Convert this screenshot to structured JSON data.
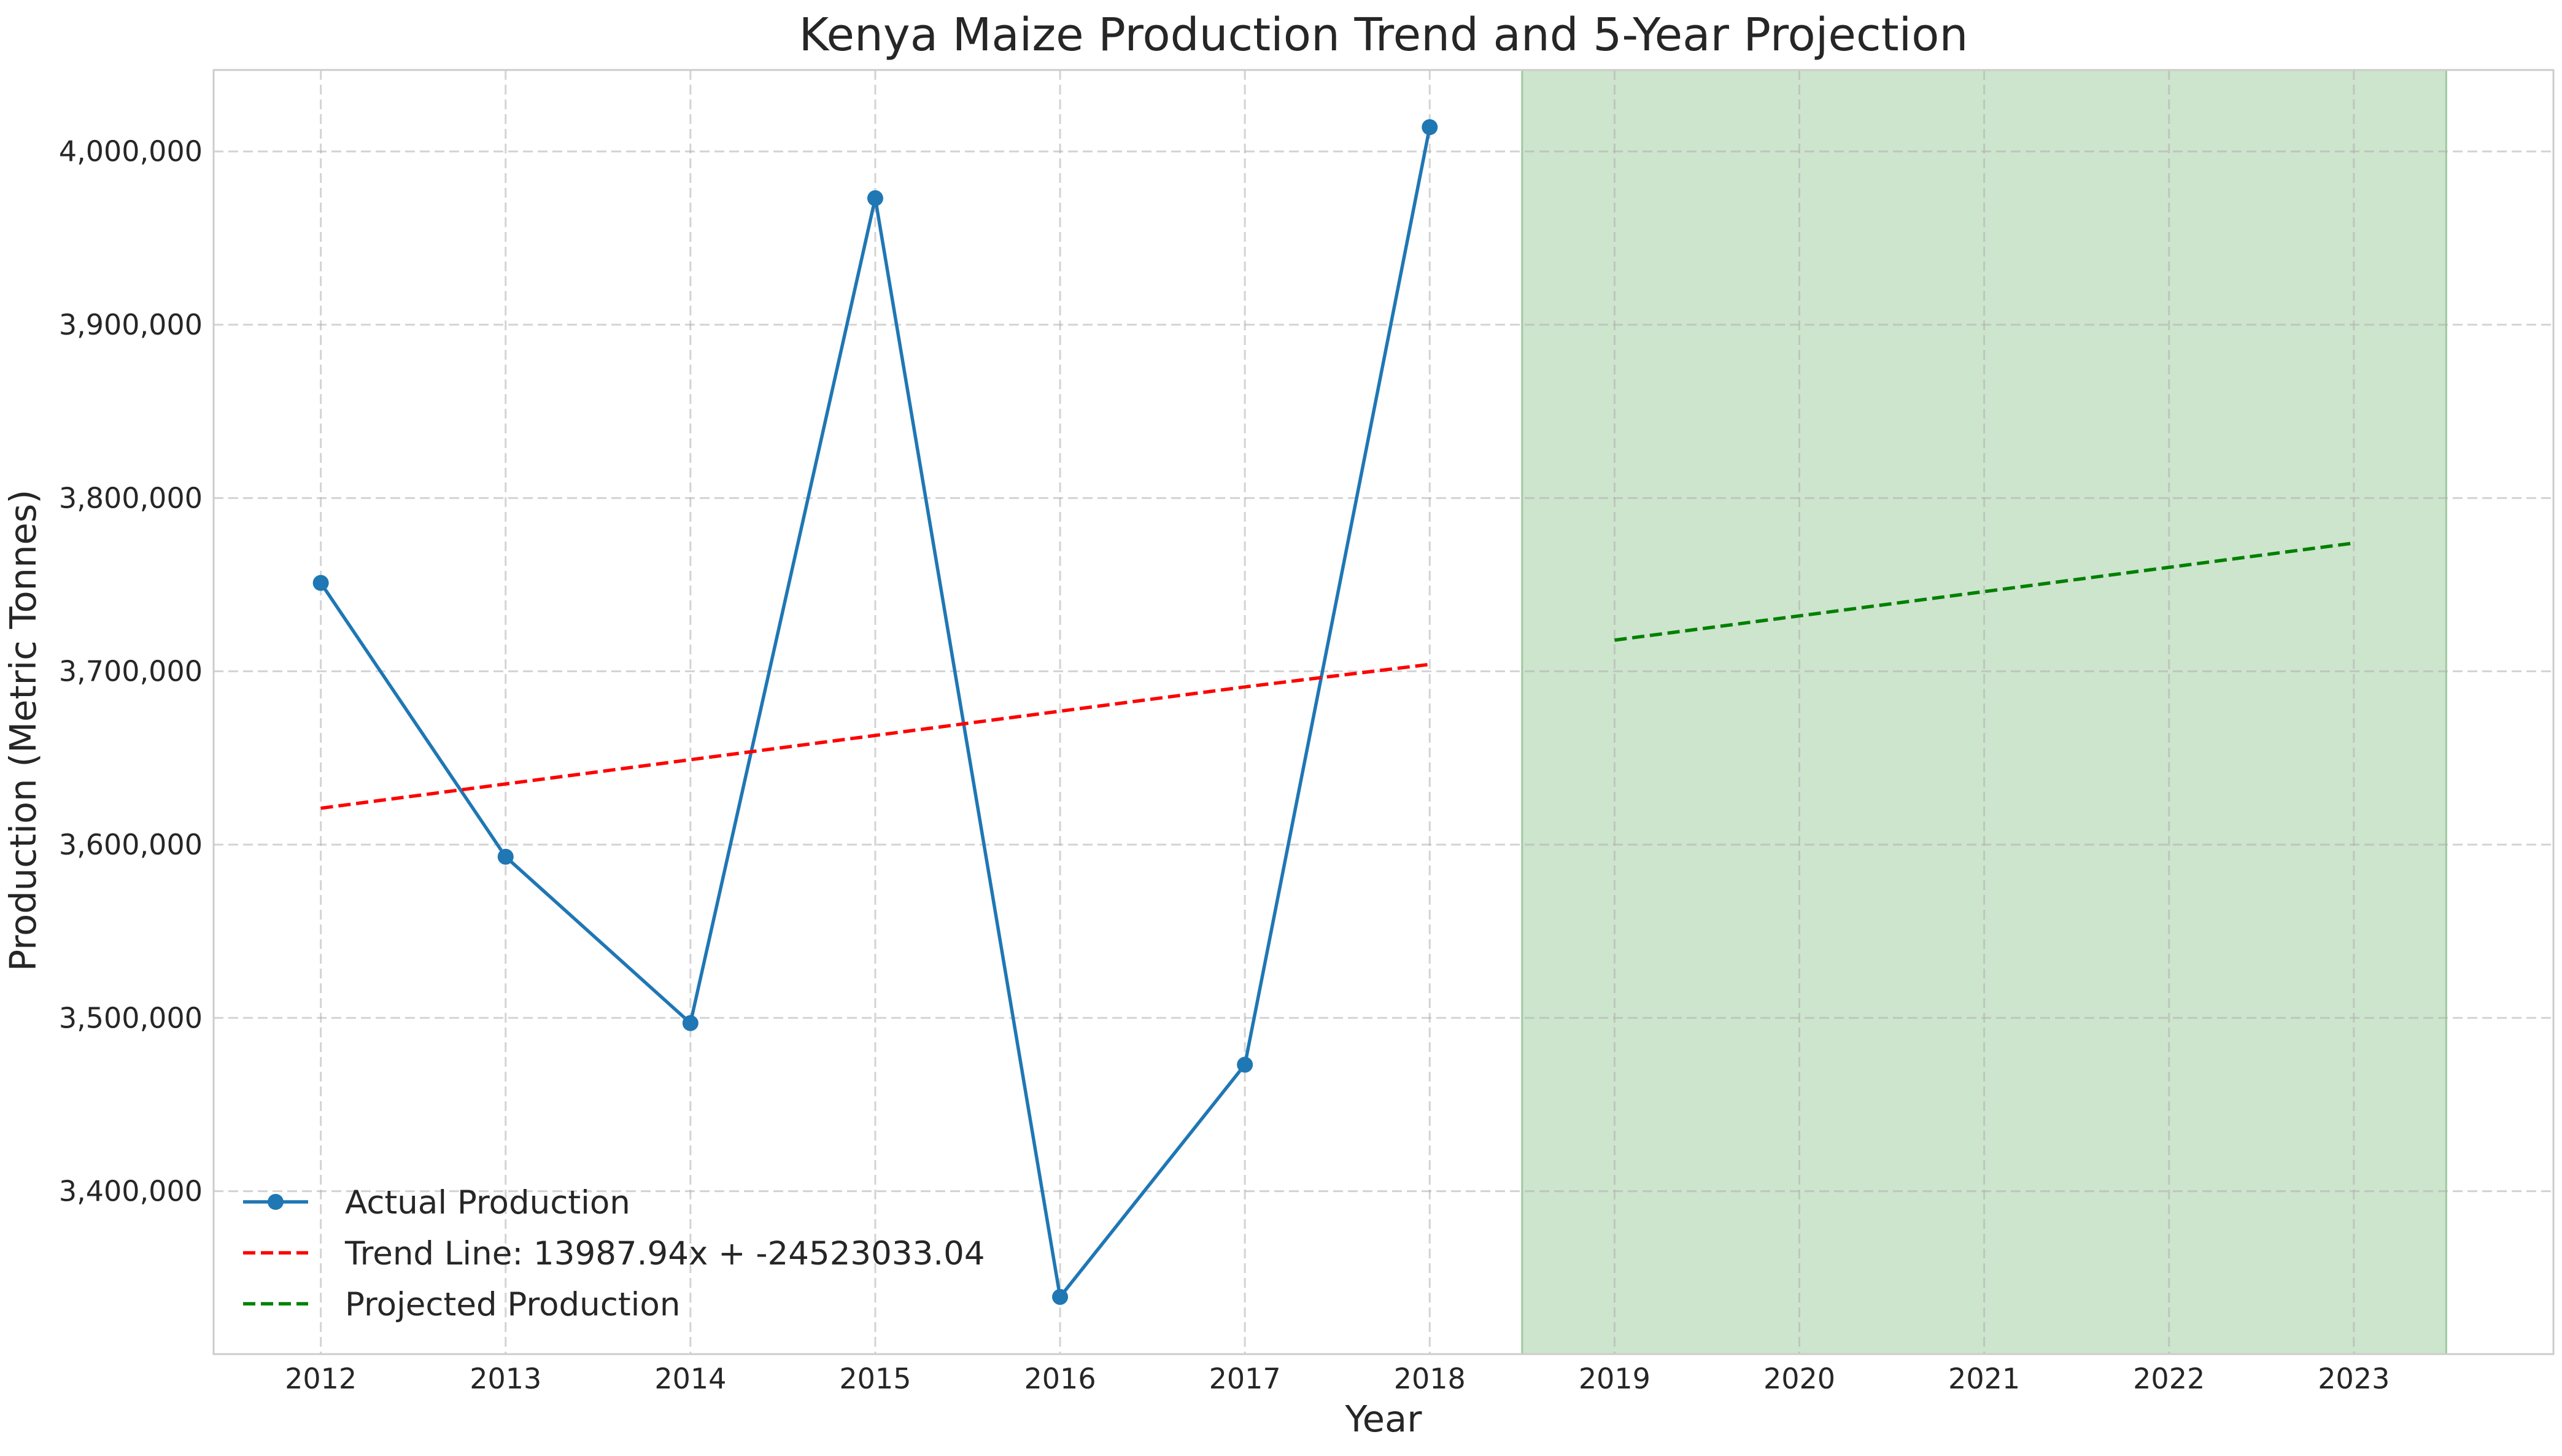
{
  "chart_data": {
    "type": "line",
    "title": "Kenya Maize Production Trend and 5-Year Projection",
    "xlabel": "Year",
    "ylabel": "Production (Metric Tonnes)",
    "xlim": [
      2011.42,
      2024.08
    ],
    "ylim": [
      3306000,
      4047000
    ],
    "x_ticks": [
      2012,
      2013,
      2014,
      2015,
      2016,
      2017,
      2018,
      2019,
      2020,
      2021,
      2022,
      2023
    ],
    "y_ticks": [
      3400000,
      3500000,
      3600000,
      3700000,
      3800000,
      3900000,
      4000000
    ],
    "y_tick_labels": [
      "3,400,000",
      "3,500,000",
      "3,600,000",
      "3,700,000",
      "3,800,000",
      "3,900,000",
      "4,000,000"
    ],
    "grid": true,
    "legend_position": "bottom-left",
    "projection_region": {
      "x_start": 2018.5,
      "x_end": 2023.5,
      "color": "#cde4cd"
    },
    "series": [
      {
        "name": "Actual Production",
        "style": "solid-with-markers",
        "color": "#1f77b4",
        "x": [
          2012,
          2013,
          2014,
          2015,
          2016,
          2017,
          2018
        ],
        "values": [
          3751000,
          3593000,
          3497000,
          3973000,
          3339000,
          3473000,
          4014000
        ]
      },
      {
        "name": "Trend Line: 13987.94x + -24523033.04",
        "style": "dashed",
        "color": "#ff0000",
        "x": [
          2012,
          2013,
          2014,
          2015,
          2016,
          2017,
          2018
        ],
        "values": [
          3621000,
          3635000,
          3649000,
          3663000,
          3677000,
          3691000,
          3704000
        ]
      },
      {
        "name": "Projected Production",
        "style": "dashed",
        "color": "#008000",
        "x": [
          2019,
          2020,
          2021,
          2022,
          2023
        ],
        "values": [
          3718000,
          3732000,
          3746000,
          3760000,
          3774000
        ]
      }
    ]
  }
}
